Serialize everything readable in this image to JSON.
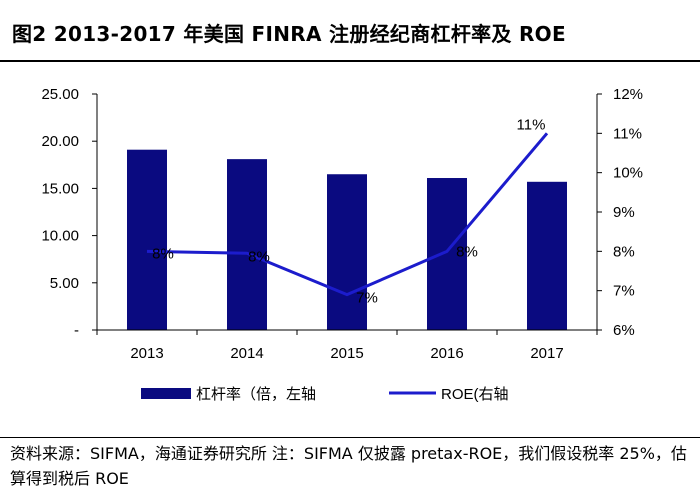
{
  "title": "图2  2013-2017 年美国 FINRA 注册经纪商杠杆率及 ROE",
  "source_note": "资料来源：SIFMA，海通证券研究所 注：SIFMA 仅披露 pretax-ROE，我们假设税率 25%，估算得到税后 ROE",
  "colors": {
    "bar": "#0a0a80",
    "line": "#1c1ccc",
    "axis": "#000000"
  },
  "chart_data": {
    "type": "bar+line",
    "categories": [
      "2013",
      "2014",
      "2015",
      "2016",
      "2017"
    ],
    "series": [
      {
        "name": "杠杆率（倍，左轴",
        "type": "bar",
        "axis": "left",
        "values": [
          19.1,
          18.1,
          16.5,
          16.1,
          15.7
        ]
      },
      {
        "name": "ROE(右轴",
        "type": "line",
        "axis": "right",
        "values": [
          8.0,
          7.95,
          6.9,
          8.0,
          11.0
        ],
        "data_labels": [
          "8%",
          "8%",
          "7%",
          "8%",
          "11%"
        ]
      }
    ],
    "left_axis": {
      "ylim": [
        0,
        25
      ],
      "ticks": [
        0,
        5,
        10,
        15,
        20,
        25
      ],
      "tick_labels": [
        "-",
        "5.00",
        "10.00",
        "15.00",
        "20.00",
        "25.00"
      ]
    },
    "right_axis": {
      "ylim": [
        6,
        12
      ],
      "ticks": [
        6,
        7,
        8,
        9,
        10,
        11,
        12
      ],
      "tick_labels": [
        "6%",
        "7%",
        "8%",
        "9%",
        "10%",
        "11%",
        "12%"
      ]
    },
    "legend_position": "bottom"
  }
}
